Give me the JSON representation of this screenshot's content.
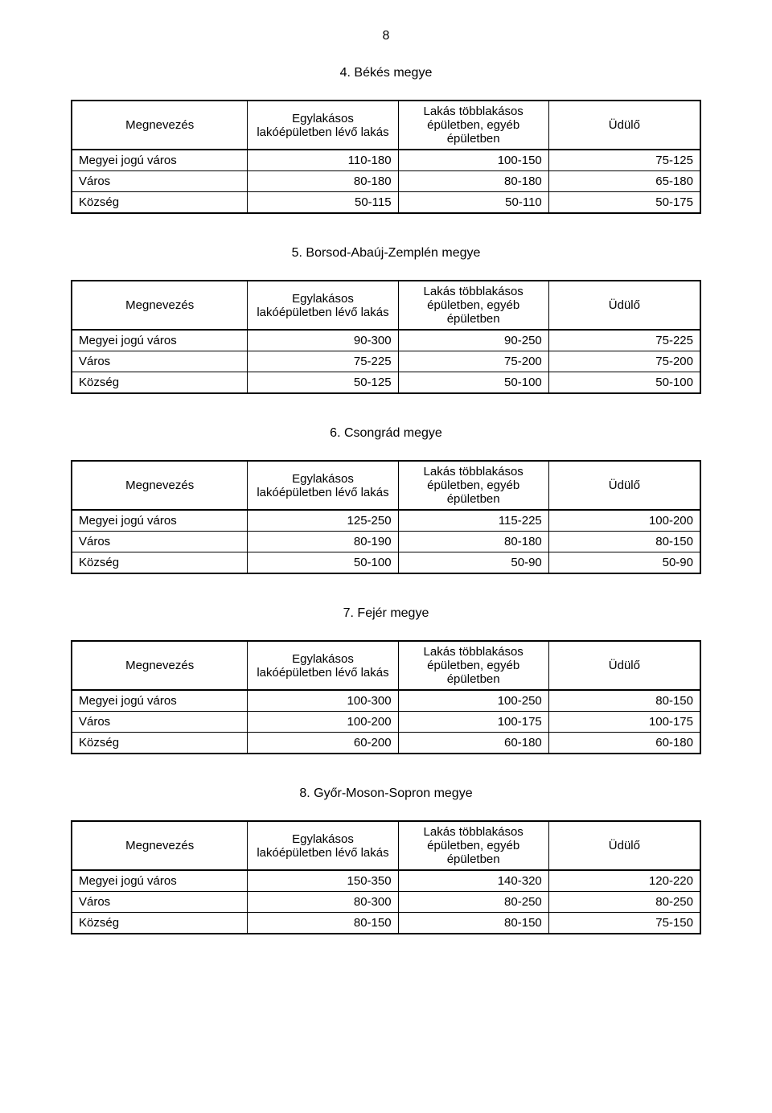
{
  "page_number": "8",
  "table_style": {
    "outer_border_width": 2.5,
    "inner_border_width": 1,
    "border_color": "#000000",
    "header_divider_width": 2.5,
    "font_family": "Arial",
    "font_size_pt": 11,
    "background_color": "#ffffff",
    "text_color": "#000000"
  },
  "columns": {
    "name": "Megnevezés",
    "col_a": "Egylakásos lakóépületben lévő lakás",
    "col_b": "Lakás többlakásos épületben, egyéb épületben",
    "col_c": "Üdülő"
  },
  "sections": [
    {
      "title": "4. Békés megye",
      "rows": [
        {
          "name": "Megyei jogú város",
          "a": "110-180",
          "b": "100-150",
          "c": "75-125"
        },
        {
          "name": "Város",
          "a": "80-180",
          "b": "80-180",
          "c": "65-180"
        },
        {
          "name": "Község",
          "a": "50-115",
          "b": "50-110",
          "c": "50-175"
        }
      ]
    },
    {
      "title": "5. Borsod-Abaúj-Zemplén megye",
      "rows": [
        {
          "name": "Megyei jogú város",
          "a": "90-300",
          "b": "90-250",
          "c": "75-225"
        },
        {
          "name": "Város",
          "a": "75-225",
          "b": "75-200",
          "c": "75-200"
        },
        {
          "name": "Község",
          "a": "50-125",
          "b": "50-100",
          "c": "50-100"
        }
      ]
    },
    {
      "title": "6. Csongrád megye",
      "rows": [
        {
          "name": "Megyei jogú város",
          "a": "125-250",
          "b": "115-225",
          "c": "100-200"
        },
        {
          "name": "Város",
          "a": "80-190",
          "b": "80-180",
          "c": "80-150"
        },
        {
          "name": "Község",
          "a": "50-100",
          "b": "50-90",
          "c": "50-90"
        }
      ]
    },
    {
      "title": "7. Fejér megye",
      "rows": [
        {
          "name": "Megyei jogú város",
          "a": "100-300",
          "b": "100-250",
          "c": "80-150"
        },
        {
          "name": "Város",
          "a": "100-200",
          "b": "100-175",
          "c": "100-175"
        },
        {
          "name": "Község",
          "a": "60-200",
          "b": "60-180",
          "c": "60-180"
        }
      ]
    },
    {
      "title": "8. Győr-Moson-Sopron megye",
      "rows": [
        {
          "name": "Megyei jogú város",
          "a": "150-350",
          "b": "140-320",
          "c": "120-220"
        },
        {
          "name": "Város",
          "a": "80-300",
          "b": "80-250",
          "c": "80-250"
        },
        {
          "name": "Község",
          "a": "80-150",
          "b": "80-150",
          "c": "75-150"
        }
      ]
    }
  ]
}
